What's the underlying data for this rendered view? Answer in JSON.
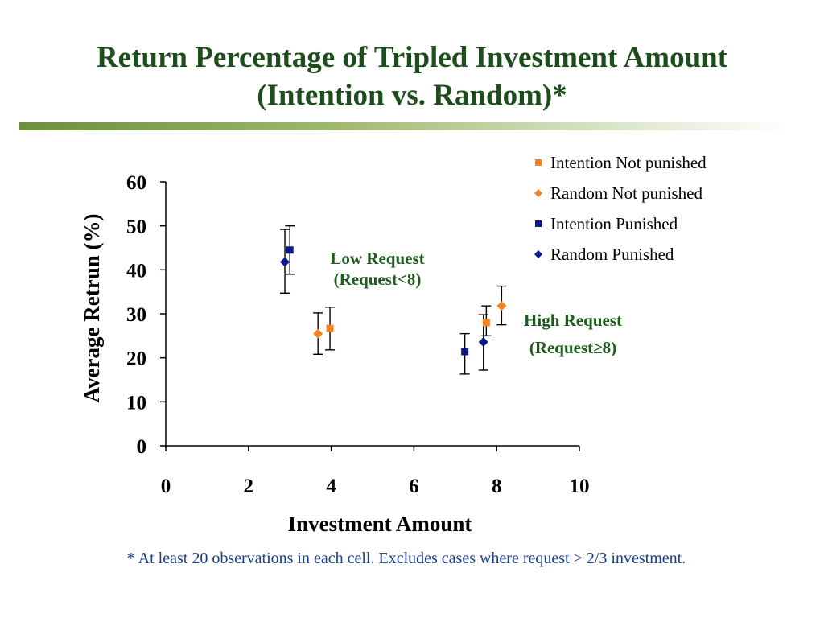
{
  "title_line1": "Return Percentage of Tripled Investment Amount",
  "title_line2": "(Intention vs. Random)*",
  "footnote": "* At least 20 observations in each cell. Excludes cases where request > 2/3 investment.",
  "colors": {
    "title": "#1d4d1d",
    "annotation": "#1d5c1d",
    "intention_not_punished": "#f58220",
    "random_not_punished": "#f58220",
    "intention_punished": "#0a1a8c",
    "random_punished": "#0a1a8c"
  },
  "chart_data": {
    "type": "scatter",
    "xlabel": "Investment Amount",
    "ylabel": "Average Retrun (%)",
    "xlim": [
      0,
      10
    ],
    "ylim": [
      0,
      60
    ],
    "xticks": [
      "0",
      "2",
      "4",
      "6",
      "8",
      "10"
    ],
    "yticks": [
      "0",
      "10",
      "20",
      "30",
      "40",
      "50",
      "60"
    ],
    "grid": false,
    "legend_position": "top-right",
    "error_bars": true,
    "series": [
      {
        "name": "Intention Not punished",
        "marker": "square",
        "color": "#f58220",
        "points": [
          {
            "x": 3.97,
            "y": 26.7,
            "err_low": 21.8,
            "err_high": 31.5
          },
          {
            "x": 7.75,
            "y": 28.0,
            "err_low": 25.0,
            "err_high": 31.8
          }
        ]
      },
      {
        "name": "Random Not punished",
        "marker": "diamond",
        "color": "#f58220",
        "points": [
          {
            "x": 3.68,
            "y": 25.5,
            "err_low": 20.8,
            "err_high": 30.2
          },
          {
            "x": 8.12,
            "y": 31.8,
            "err_low": 27.5,
            "err_high": 36.3
          }
        ]
      },
      {
        "name": "Intention Punished",
        "marker": "square",
        "color": "#0a1a8c",
        "points": [
          {
            "x": 3.0,
            "y": 44.5,
            "err_low": 39.0,
            "err_high": 50.0
          },
          {
            "x": 7.23,
            "y": 21.4,
            "err_low": 16.3,
            "err_high": 25.5
          }
        ]
      },
      {
        "name": "Random Punished",
        "marker": "diamond",
        "color": "#0a1a8c",
        "points": [
          {
            "x": 2.88,
            "y": 41.8,
            "err_low": 34.7,
            "err_high": 49.2
          },
          {
            "x": 7.68,
            "y": 23.6,
            "err_low": 17.2,
            "err_high": 29.8
          }
        ]
      }
    ],
    "annotations": [
      {
        "lines": [
          "Low Request",
          "(Request<8)"
        ]
      },
      {
        "lines": [
          "High Request",
          "(Request≥8)"
        ]
      }
    ]
  }
}
